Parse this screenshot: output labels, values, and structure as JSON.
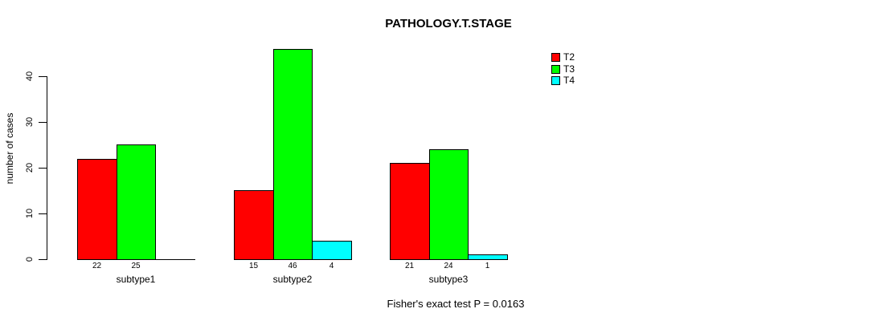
{
  "chart_data": {
    "type": "bar",
    "title": "PATHOLOGY.T.STAGE",
    "ylabel": "number of cases",
    "xlabel": "",
    "categories": [
      "subtype1",
      "subtype2",
      "subtype3"
    ],
    "series": [
      {
        "name": "T2",
        "color": "#ff0000",
        "values": [
          22,
          15,
          21
        ]
      },
      {
        "name": "T3",
        "color": "#00ff00",
        "values": [
          25,
          46,
          24
        ]
      },
      {
        "name": "T4",
        "color": "#00ffff",
        "values": [
          0,
          4,
          1
        ]
      }
    ],
    "bar_value_labels": [
      [
        "22",
        "25",
        ""
      ],
      [
        "15",
        "46",
        "4"
      ],
      [
        "21",
        "24",
        "1"
      ]
    ],
    "yticks": [
      0,
      10,
      20,
      30,
      40
    ],
    "ylim": [
      0,
      46
    ],
    "grid": false,
    "legend_position": "top-right",
    "legend_entries": [
      "T2",
      "T3",
      "T4"
    ],
    "annotation": "Fisher's exact test P = 0.0163",
    "colors": {
      "background": "#ffffff",
      "axis": "#000000",
      "text": "#000000"
    }
  }
}
